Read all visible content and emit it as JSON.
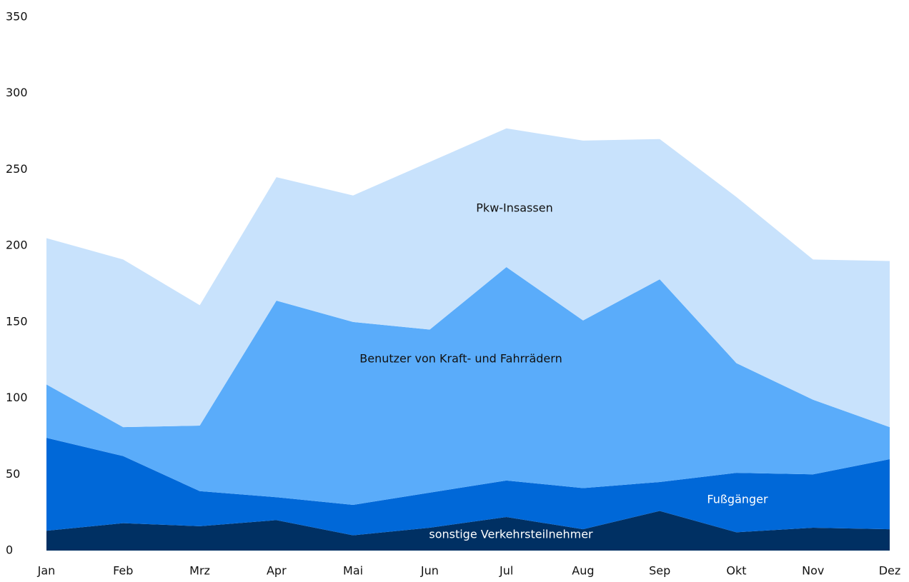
{
  "chart_data": {
    "type": "stacked_area",
    "categories": [
      "Jan",
      "Feb",
      "Mrz",
      "Apr",
      "Mai",
      "Jun",
      "Jul",
      "Aug",
      "Sep",
      "Okt",
      "Nov",
      "Dez"
    ],
    "series": [
      {
        "name": "sonstige Verkehrsteilnehmer",
        "color": "#003063",
        "values": [
          13,
          18,
          16,
          20,
          10,
          15,
          22,
          14,
          26,
          12,
          15,
          14
        ]
      },
      {
        "name": "Fußgänger",
        "color": "#0068d8",
        "values": [
          61,
          44,
          23,
          15,
          20,
          23,
          24,
          27,
          19,
          39,
          35,
          46
        ]
      },
      {
        "name": "Benutzer von Kraft- und Fahrrädern",
        "color": "#5aacfa",
        "values": [
          35,
          19,
          43,
          129,
          120,
          107,
          140,
          110,
          133,
          72,
          49,
          21
        ]
      },
      {
        "name": "Pkw-Insassen",
        "color": "#c8e2fc",
        "values": [
          96,
          110,
          79,
          81,
          83,
          110,
          91,
          118,
          92,
          109,
          92,
          109
        ]
      }
    ],
    "ylim": [
      0,
      350
    ],
    "yticks": [
      0,
      50,
      100,
      150,
      200,
      250,
      300,
      350
    ],
    "grid": false
  }
}
